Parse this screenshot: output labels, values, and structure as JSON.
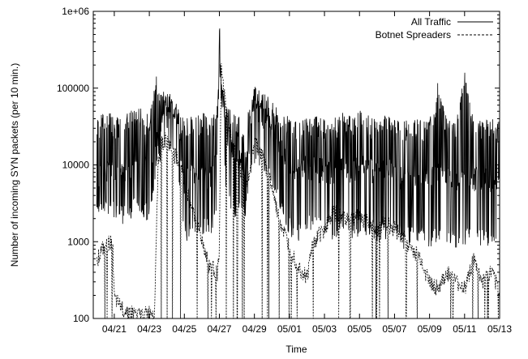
{
  "chart_data": {
    "type": "line",
    "title": "",
    "xlabel": "Time",
    "ylabel": "Number of incoming SYN packets (per 10 min.)",
    "yscale": "log",
    "ylim": [
      100,
      1000000
    ],
    "xlim": [
      "04/20",
      "05/13"
    ],
    "y_tick_labels": [
      "100",
      "1000",
      "10000",
      "100000",
      "1e+06"
    ],
    "y_tick_values": [
      100,
      1000,
      10000,
      100000,
      1000000
    ],
    "x_tick_labels": [
      "04/21",
      "04/23",
      "04/25",
      "04/27",
      "04/29",
      "05/01",
      "05/03",
      "05/05",
      "05/07",
      "05/09",
      "05/11",
      "05/13"
    ],
    "grid": false,
    "legend_position": "top-right",
    "series": [
      {
        "name": "All Traffic",
        "style": "solid",
        "color": "#000000",
        "x": [
          0.0,
          0.5,
          1.0,
          1.5,
          2.0,
          2.5,
          3.0,
          3.4,
          3.6,
          3.8,
          4.0,
          4.5,
          5.0,
          5.5,
          6.0,
          6.5,
          6.9,
          7.0,
          7.1,
          7.5,
          8.0,
          8.5,
          9.0,
          9.5,
          10.0,
          10.5,
          11.0,
          11.5,
          12.0,
          12.5,
          13.0,
          13.5,
          14.0,
          14.5,
          15.0,
          15.5,
          16.0,
          16.5,
          17.0,
          17.5,
          18.0,
          18.5,
          19.0,
          19.5,
          20.0,
          20.5,
          21.0,
          21.5,
          22.0,
          22.5,
          23.0
        ],
        "base": [
          6000,
          7500,
          8000,
          7000,
          9000,
          9500,
          8000,
          20000,
          20000,
          70000,
          60000,
          50000,
          6000,
          7000,
          8000,
          6500,
          12000,
          600000,
          100000,
          20000,
          12000,
          10000,
          55000,
          40000,
          30000,
          15000,
          10000,
          8000,
          9000,
          8500,
          8000,
          7500,
          9000,
          8000,
          9000,
          8500,
          7000,
          8000,
          7500,
          6000,
          6000,
          7000,
          6000,
          7000,
          6500,
          6000,
          6500,
          6000,
          6500,
          6000,
          5500
        ],
        "spikes_high": [
          40000,
          50000,
          45000,
          40000,
          60000,
          55000,
          45000,
          160000,
          80000,
          90000,
          85000,
          70000,
          40000,
          45000,
          50000,
          40000,
          60000,
          600000,
          120000,
          60000,
          45000,
          40000,
          110000,
          90000,
          70000,
          45000,
          45000,
          40000,
          45000,
          45000,
          40000,
          40000,
          50000,
          45000,
          55000,
          45000,
          40000,
          45000,
          40000,
          38000,
          40000,
          40000,
          38000,
          130000,
          40000,
          40000,
          175000,
          40000,
          40000,
          40000,
          38000
        ],
        "spikes_low": [
          2500,
          3000,
          2500,
          2000,
          2500,
          3000,
          2000,
          9000,
          12000,
          30000,
          25000,
          12000,
          1200,
          1500,
          1400,
          1500,
          2000,
          220000,
          30000,
          3000,
          2500,
          2500,
          12000,
          10000,
          6000,
          3000,
          1500,
          1200,
          1800,
          1500,
          1500,
          1200,
          1400,
          1300,
          1500,
          1400,
          1200,
          1300,
          1500,
          1000,
          1200,
          1200,
          1000,
          1200,
          1000,
          1000,
          1100,
          1000,
          1100,
          1000,
          1000
        ]
      },
      {
        "name": "Botnet Spreaders",
        "style": "dashed",
        "color": "#000000",
        "x": [
          0.0,
          0.3,
          0.6,
          0.9,
          1.0,
          1.3,
          1.6,
          2.0,
          2.5,
          3.0,
          3.3,
          3.5,
          3.7,
          4.0,
          4.3,
          4.6,
          4.9,
          5.2,
          5.5,
          5.8,
          6.1,
          6.4,
          6.7,
          6.9,
          7.0,
          7.1,
          7.4,
          7.7,
          8.0,
          8.3,
          8.6,
          9.0,
          9.2,
          9.5,
          9.8,
          10.0,
          10.3,
          10.6,
          10.9,
          11.2,
          11.5,
          11.8,
          12.0,
          12.3,
          12.6,
          13.0,
          13.5,
          14.0,
          14.5,
          15.0,
          15.5,
          16.0,
          16.5,
          17.0,
          17.5,
          18.0,
          18.5,
          19.0,
          19.5,
          20.0,
          20.5,
          21.0,
          21.5,
          22.0,
          22.5,
          23.0
        ],
        "values": [
          600,
          800,
          900,
          1100,
          180,
          150,
          130,
          120,
          110,
          120,
          130,
          12000,
          20000,
          22000,
          15000,
          12000,
          8000,
          4000,
          2500,
          1500,
          900,
          500,
          450,
          400,
          700,
          180000,
          50000,
          20000,
          12000,
          8000,
          6000,
          20000,
          18000,
          12000,
          8000,
          5000,
          2500,
          1500,
          1000,
          700,
          500,
          400,
          350,
          900,
          1200,
          1500,
          2500,
          2200,
          2000,
          2200,
          1800,
          1500,
          1800,
          1500,
          1200,
          800,
          600,
          300,
          250,
          400,
          300,
          250,
          600,
          300,
          400,
          250
        ]
      }
    ]
  }
}
